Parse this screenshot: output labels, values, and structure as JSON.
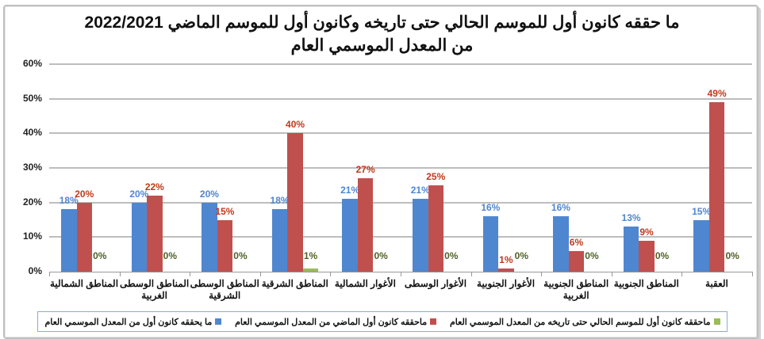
{
  "chart_data": {
    "type": "bar",
    "title": "ما حققه كانون أول للموسم الحالي حتى تاريخه وكانون أول للموسم الماضي 2022/2021",
    "subtitle": "من المعدل الموسمي العام",
    "xlabel": "",
    "ylabel": "",
    "ylim": [
      0,
      60
    ],
    "yticks": [
      "0%",
      "10%",
      "20%",
      "30%",
      "40%",
      "50%",
      "60%"
    ],
    "grid": true,
    "legend_position": "bottom",
    "categories": [
      "المناطق الشمالية",
      "المناطق الوسطى الغربية",
      "المناطق الوسطى الشرقية",
      "المناطق الشرقية",
      "الأغوار الشمالية",
      "الأغوار الوسطى",
      "الأغوار الجنوبية",
      "المناطق الجنوبية الغربية",
      "المناطق الجنوبية",
      "العقبة"
    ],
    "series": [
      {
        "name": "ما يحققه كانون أول من المعدل الموسمي العام",
        "color": "#4f86d0",
        "label_color": "#4f86d0",
        "values": [
          18,
          20,
          20,
          18,
          21,
          21,
          16,
          16,
          13,
          15
        ]
      },
      {
        "name": "ماحققه كانون أول الماضي من المعدل الموسمي العام",
        "color": "#c0504d",
        "label_color": "#c0391b",
        "values": [
          20,
          22,
          15,
          40,
          27,
          25,
          1,
          6,
          9,
          49
        ]
      },
      {
        "name": "ماحققه كانون أول للموسم الحالي حتى تاريخه من المعدل الموسمي العام",
        "color": "#9bbb59",
        "label_color": "#4f6228",
        "values": [
          0,
          0,
          0,
          1,
          0,
          0,
          0,
          0,
          0,
          0
        ]
      }
    ]
  },
  "header": {
    "title_line1": "ما حققه كانون أول للموسم الحالي حتى تاريخه وكانون أول للموسم الماضي 2022/2021",
    "title_line2": "من المعدل الموسمي العام"
  }
}
